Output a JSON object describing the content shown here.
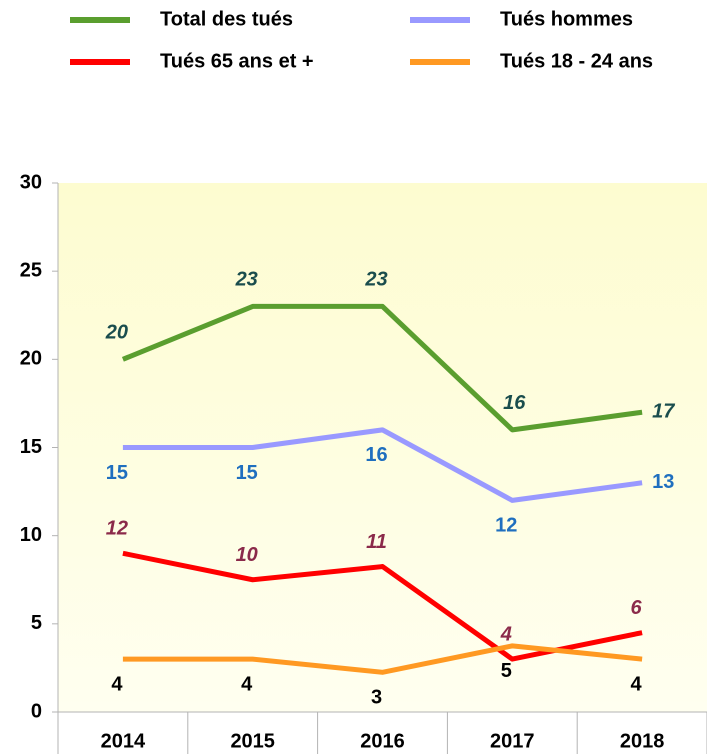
{
  "chart_data": {
    "type": "line",
    "categories": [
      "2014",
      "2015",
      "2016",
      "2017",
      "2018"
    ],
    "series": [
      {
        "name": "Total des tués",
        "color": "#5a9e2f",
        "values": [
          20,
          23,
          23,
          16,
          17
        ]
      },
      {
        "name": "Tués hommes",
        "color": "#9999ff",
        "values": [
          15,
          15,
          16,
          12,
          13
        ]
      },
      {
        "name": "Tués 65 ans et +",
        "color": "#ff0000",
        "values": [
          12,
          10,
          11,
          4,
          6
        ],
        "axis": "y2"
      },
      {
        "name": "Tués 18 - 24 ans",
        "color": "#ff9922",
        "values": [
          4,
          4,
          3,
          5,
          4
        ],
        "axis": "y2"
      }
    ],
    "ylim": [
      0,
      30
    ],
    "yticks": [
      0,
      5,
      10,
      15,
      20,
      25,
      30
    ],
    "y2lim": [
      0,
      40
    ],
    "legend": "top"
  }
}
